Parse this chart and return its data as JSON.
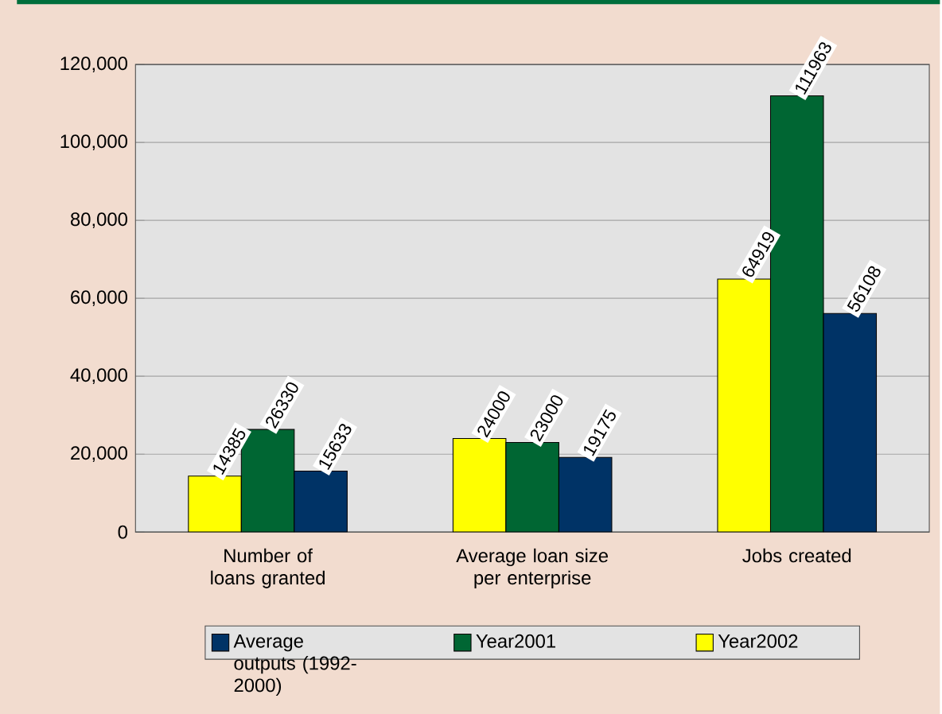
{
  "chart_data": {
    "type": "bar",
    "categories": [
      "Number of loans granted",
      "Average loan size per enterprise",
      "Jobs created"
    ],
    "series": [
      {
        "name": "Year2002",
        "color": "#ffff00",
        "values": [
          14385,
          24000,
          64919
        ]
      },
      {
        "name": "Year2001",
        "color": "#006633",
        "values": [
          26330,
          23000,
          111963
        ]
      },
      {
        "name": "Average outputs (1992-2000)",
        "color": "#003366",
        "values": [
          15633,
          19175,
          56108
        ]
      }
    ],
    "ylim": [
      0,
      120000
    ],
    "yticks": [
      0,
      {
        "value": 20000,
        "label": "20,000"
      },
      {
        "value": 40000,
        "label": "40,000"
      },
      {
        "value": 60000,
        "label": "60,000"
      },
      {
        "value": 80000,
        "label": "80,000"
      },
      {
        "value": 100000,
        "label": "100,000"
      },
      {
        "value": 120000,
        "label": "120,000"
      }
    ],
    "grid": "y",
    "legend": "bottom",
    "data_labels": true
  }
}
